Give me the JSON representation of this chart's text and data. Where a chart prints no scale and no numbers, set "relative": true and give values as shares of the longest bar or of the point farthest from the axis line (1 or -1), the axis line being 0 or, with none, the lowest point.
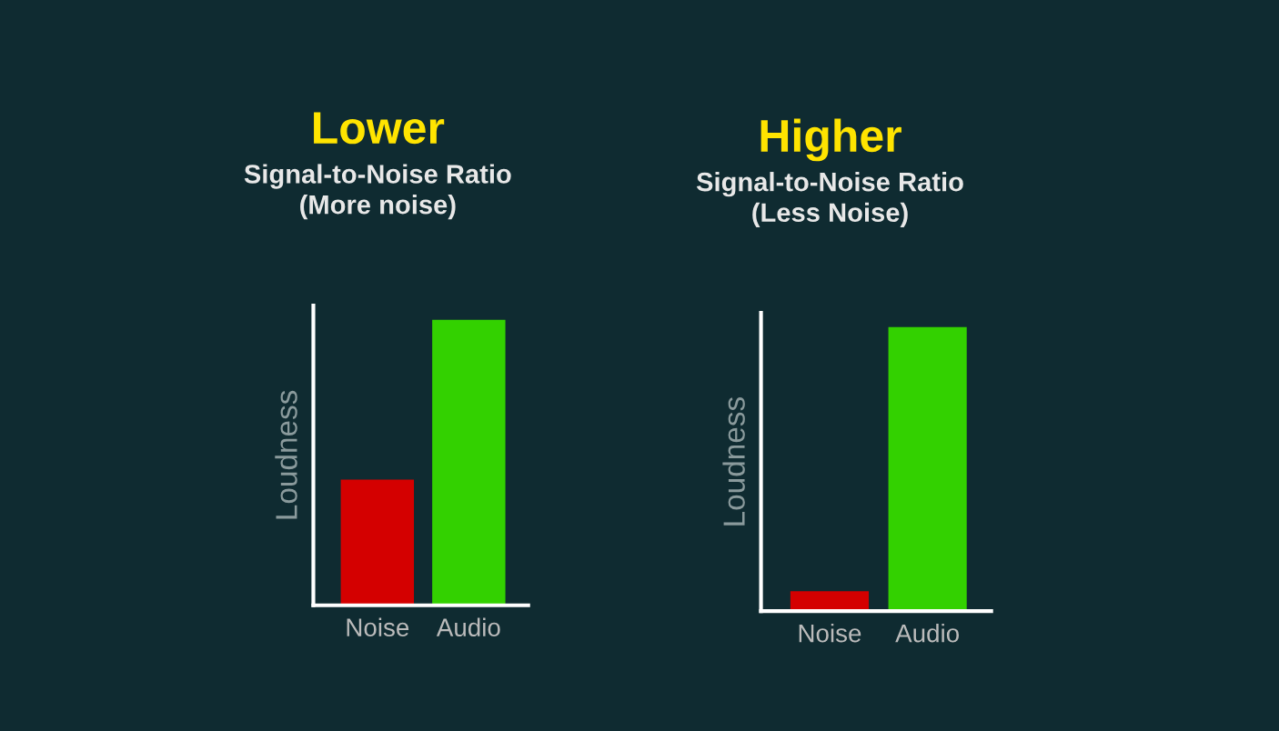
{
  "chart_data": [
    {
      "type": "bar",
      "title": "Lower",
      "subtitle": "Signal-to-Noise Ratio\n(More noise)",
      "ylabel": "Loudness",
      "categories": [
        "Noise",
        "Audio"
      ],
      "values": [
        0.44,
        1
      ],
      "colors": [
        "#d40000",
        "#33d100"
      ],
      "relative": true,
      "grid": false,
      "legend": false
    },
    {
      "type": "bar",
      "title": "Higher",
      "subtitle": "Signal-to-Noise Ratio\n(Less Noise)",
      "ylabel": "Loudness",
      "categories": [
        "Noise",
        "Audio"
      ],
      "values": [
        0.07,
        1
      ],
      "colors": [
        "#d40000",
        "#33d100"
      ],
      "relative": true,
      "grid": false,
      "legend": false
    }
  ]
}
